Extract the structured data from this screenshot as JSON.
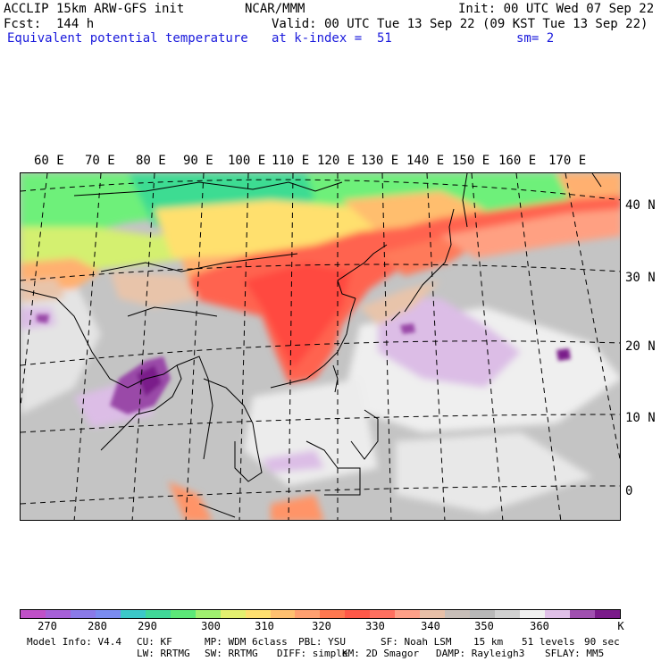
{
  "header": {
    "line1_left": "ACCLIP 15km ARW-GFS init",
    "line1_mid": "NCAR/MMM",
    "line1_right": "Init: 00 UTC Wed 07 Sep 22",
    "line2_left": "Fcst:  144 h",
    "line2_right": "Valid: 00 UTC Tue 13 Sep 22 (09 KST Tue 13 Sep 22)",
    "line3_left": "Equivalent potential temperature",
    "line3_mid": "at k-index =  51",
    "line3_right": "sm= 2"
  },
  "map": {
    "lon_labels": [
      "60 E",
      "70 E",
      "80 E",
      "90 E",
      "100 E",
      "110 E",
      "120 E",
      "130 E",
      "140 E",
      "150 E",
      "160 E",
      "170 E"
    ],
    "lat_labels": [
      "40 N",
      "30 N",
      "20 N",
      "10 N",
      "0"
    ]
  },
  "colorbar": {
    "colors": [
      "#c050c8",
      "#a660d8",
      "#8a7ae8",
      "#7a8cf0",
      "#3cc8c8",
      "#40d898",
      "#5ce878",
      "#a0f070",
      "#e4f070",
      "#ffe070",
      "#ffc070",
      "#ffa070",
      "#ff7850",
      "#ff5848",
      "#ff7060",
      "#ffa088",
      "#e8c0a8",
      "#c8beb8",
      "#b8b8b8",
      "#d0d0d0",
      "#f0f0f0",
      "#e0c0e8",
      "#a050b0",
      "#7a1a8a"
    ],
    "labels": [
      "270",
      "280",
      "290",
      "300",
      "310",
      "320",
      "330",
      "340",
      "350",
      "360"
    ],
    "unit": "K"
  },
  "model_info": {
    "line1": [
      "Model Info: V4.4",
      "CU: KF",
      "MP: WDM 6class",
      "PBL: YSU",
      "SF: Noah LSM",
      "15 km",
      "51 levels",
      "90 sec"
    ],
    "line2": [
      "LW: RRTMG",
      "SW: RRTMG",
      "DIFF: simple",
      "KM: 2D Smagor",
      "DAMP: Rayleigh3",
      "SFLAY: MM5"
    ]
  }
}
